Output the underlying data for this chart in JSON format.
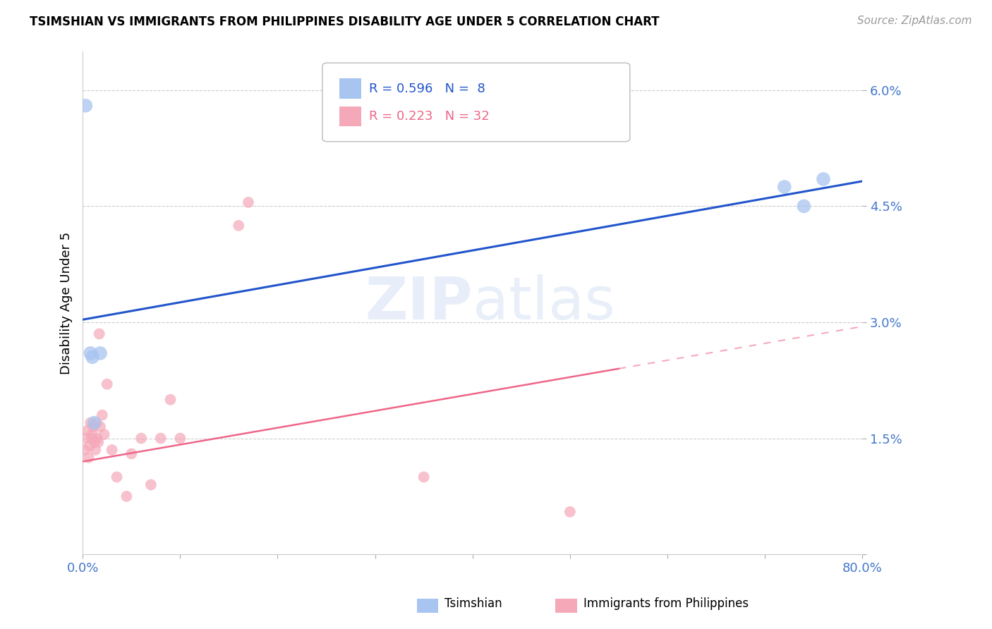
{
  "title": "TSIMSHIAN VS IMMIGRANTS FROM PHILIPPINES DISABILITY AGE UNDER 5 CORRELATION CHART",
  "source": "Source: ZipAtlas.com",
  "ylabel": "Disability Age Under 5",
  "blue_color": "#a8c4f0",
  "pink_color": "#f5a8b8",
  "blue_line_color": "#2255cc",
  "pink_line_color": "#ee6688",
  "pink_dash_color": "#f5aabb",
  "label_color": "#4477cc",
  "grid_color": "#cccccc",
  "watermark_text": "ZIPatlas",
  "tsimshian_x": [
    0.3,
    0.8,
    1.0,
    1.2,
    1.8,
    72.0,
    74.0,
    76.0
  ],
  "tsimshian_y": [
    5.8,
    2.6,
    2.55,
    1.7,
    2.6,
    4.75,
    4.5,
    4.85
  ],
  "philippines_x": [
    0.2,
    0.3,
    0.5,
    0.6,
    0.7,
    0.8,
    0.9,
    1.0,
    1.1,
    1.2,
    1.3,
    1.4,
    1.5,
    1.6,
    1.7,
    1.8,
    2.0,
    2.2,
    2.5,
    3.0,
    3.5,
    4.5,
    5.0,
    6.0,
    7.0,
    8.0,
    9.0,
    10.0,
    16.0,
    17.0,
    35.0,
    50.0
  ],
  "philippines_y": [
    1.35,
    1.5,
    1.6,
    1.25,
    1.4,
    1.7,
    1.5,
    1.55,
    1.65,
    1.45,
    1.35,
    1.7,
    1.5,
    1.45,
    2.85,
    1.65,
    1.8,
    1.55,
    2.2,
    1.35,
    1.0,
    0.75,
    1.3,
    1.5,
    0.9,
    1.5,
    2.0,
    1.5,
    4.25,
    4.55,
    1.0,
    0.55
  ],
  "pink_line_x_end": 55.0,
  "xmin": 0.0,
  "xmax": 80.0,
  "ymin": 0.0,
  "ymax": 6.5,
  "ytick_vals": [
    0.0,
    1.5,
    3.0,
    4.5,
    6.0
  ],
  "xtick_vals": [
    0.0,
    10.0,
    20.0,
    30.0,
    40.0,
    50.0,
    60.0,
    70.0,
    80.0
  ],
  "figwidth": 14.06,
  "figheight": 8.92,
  "dpi": 100
}
